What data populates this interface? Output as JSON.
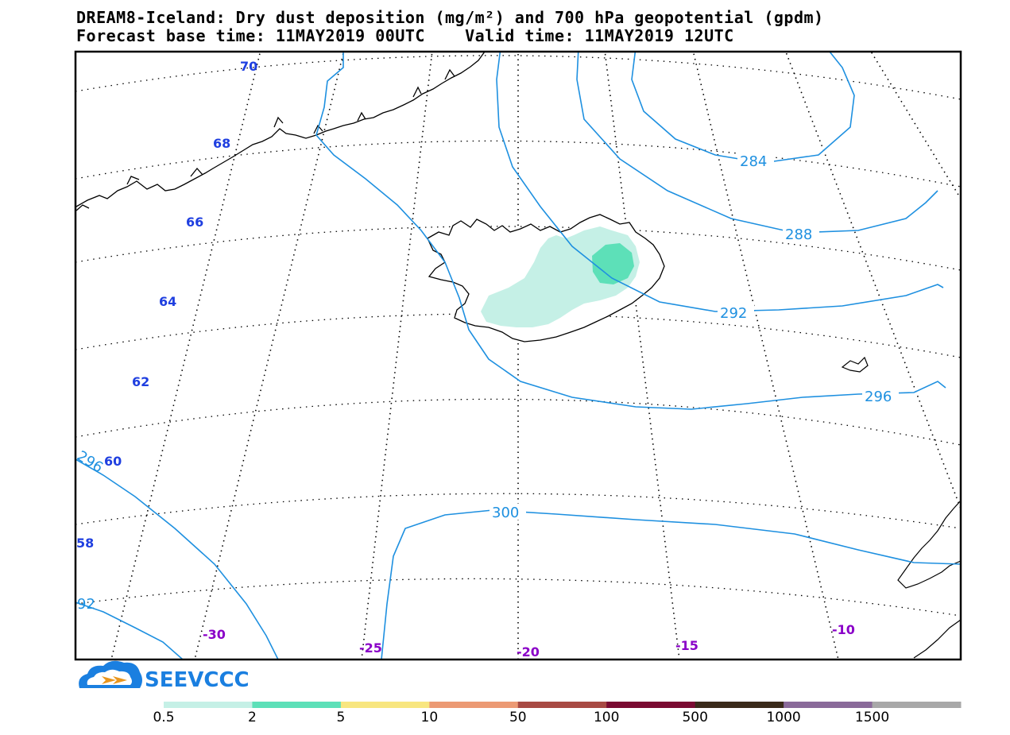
{
  "title": {
    "line1": "DREAM8-Iceland: Dry dust deposition (mg/m²) and 700 hPa geopotential (gpdm)",
    "line2": "Forecast base time: 11MAY2019 00UTC    Valid time: 11MAY2019 12UTC"
  },
  "latitude_labels": [
    "70",
    "68",
    "66",
    "64",
    "62",
    "60",
    "58"
  ],
  "longitude_labels": [
    "-30",
    "-25",
    "-20",
    "-15",
    "-10"
  ],
  "contour_labels": [
    "284",
    "288",
    "292",
    "296",
    "300",
    "296",
    "92"
  ],
  "logo": {
    "text": "SEEVCCC",
    "icon": "cloud-arrow-icon"
  },
  "legend": {
    "labels": [
      "0.5",
      "2",
      "5",
      "10",
      "50",
      "100",
      "500",
      "1000",
      "1500"
    ],
    "colors": [
      "#c5f0e6",
      "#5de0b8",
      "#f8e680",
      "#ec9a74",
      "#a84a44",
      "#7a0a32",
      "#3a2a1a",
      "#8a6a9a",
      "#a8a8a8"
    ]
  },
  "colors": {
    "contour": "#1e90e0",
    "latitude_label": "#1f3fe0",
    "longitude_label": "#8a00c8",
    "deposition_low": "#c5f0e6",
    "deposition_mid": "#5de0b8"
  }
}
